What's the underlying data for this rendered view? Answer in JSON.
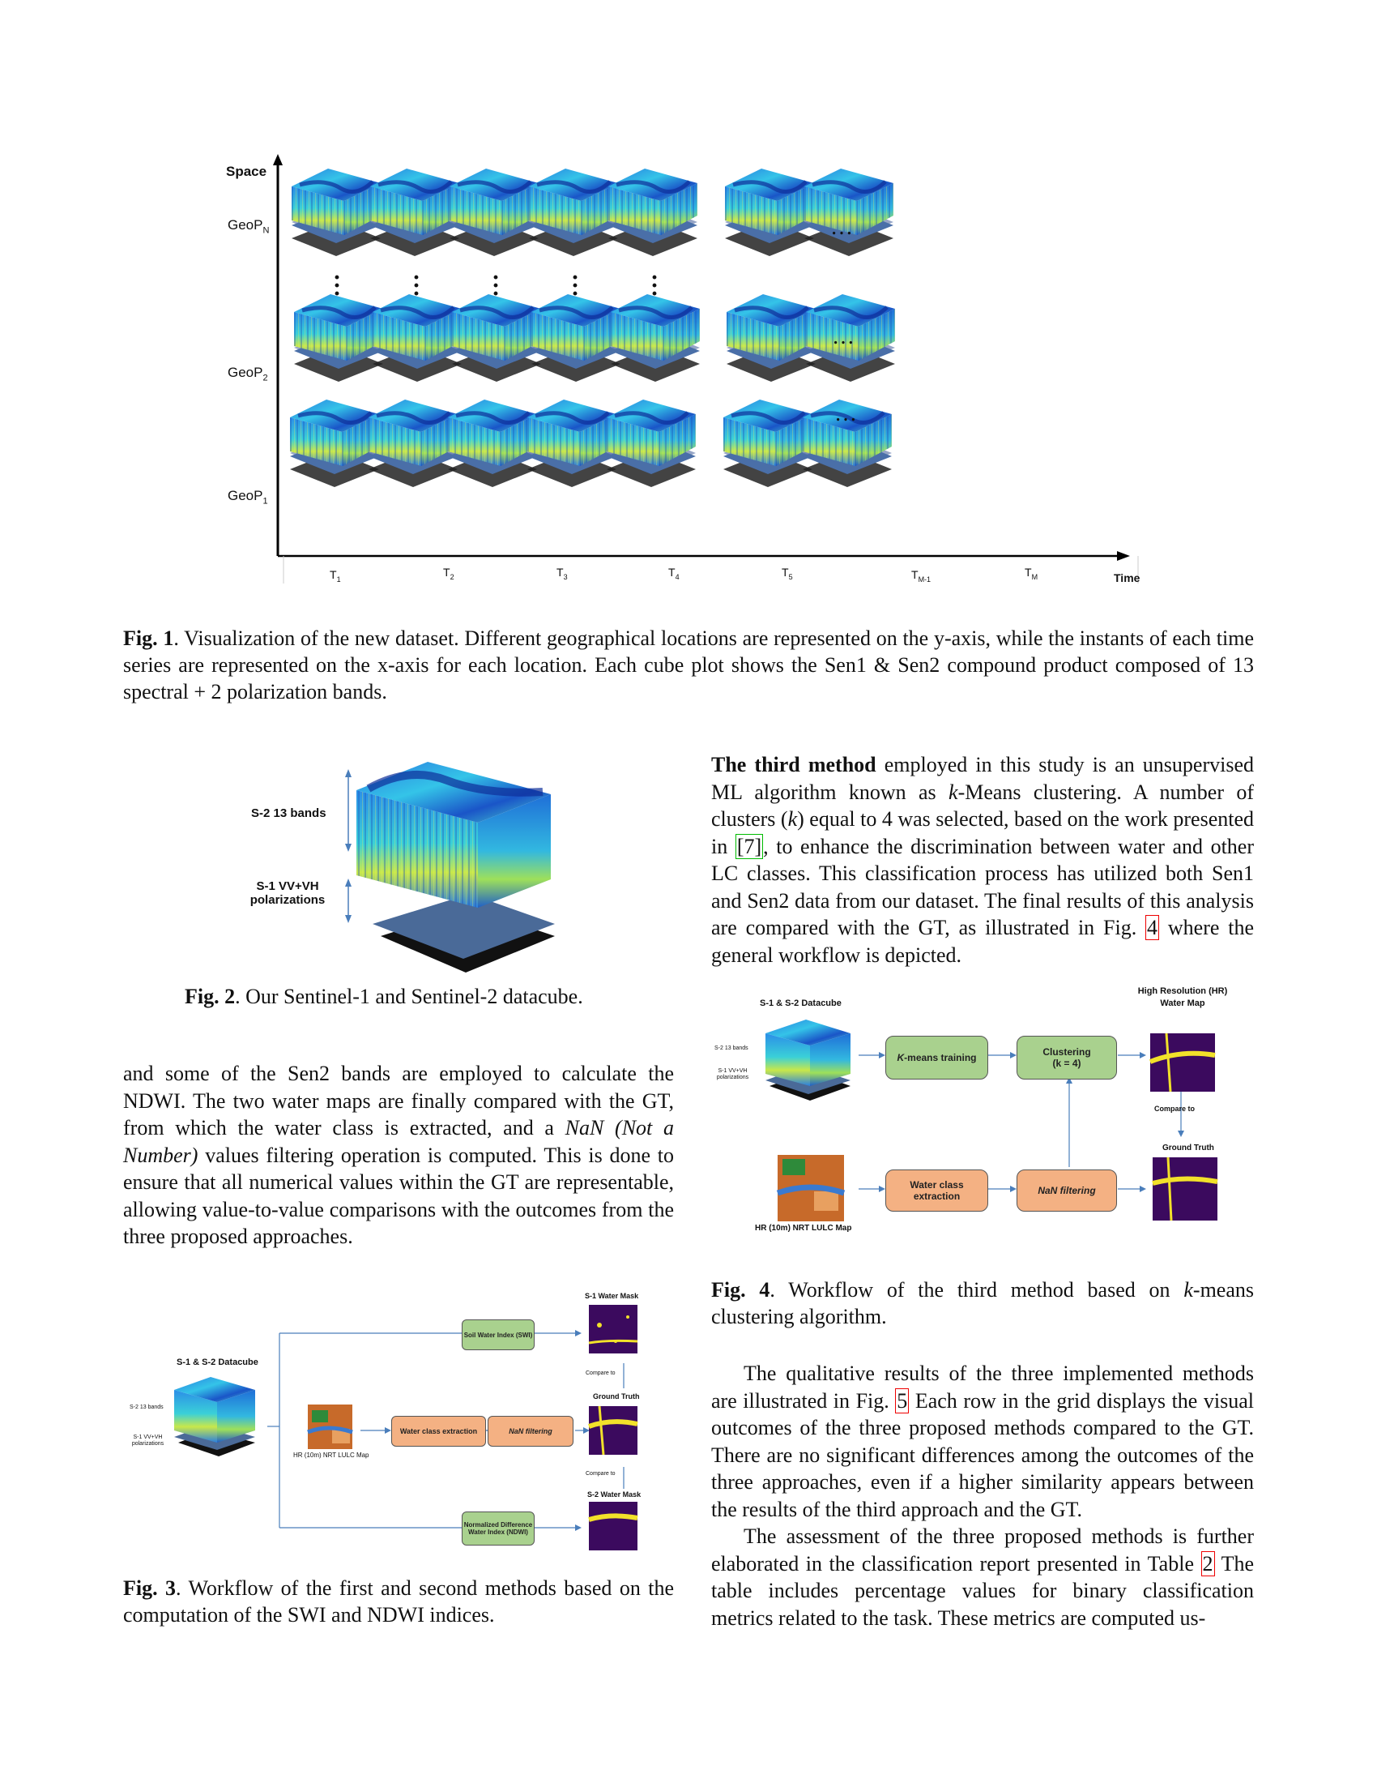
{
  "fig1": {
    "y_axis_label": "Space",
    "x_axis_label": "Time",
    "rows": [
      {
        "label": "GeoP",
        "sub": "N"
      },
      {
        "label": "GeoP",
        "sub": "2"
      },
      {
        "label": "GeoP",
        "sub": "1"
      }
    ],
    "time_ticks": [
      {
        "label": "T",
        "sub": "1"
      },
      {
        "label": "T",
        "sub": "2"
      },
      {
        "label": "T",
        "sub": "3"
      },
      {
        "label": "T",
        "sub": "4"
      },
      {
        "label": "T",
        "sub": "5"
      },
      {
        "label": "T",
        "sub": "M-1"
      },
      {
        "label": "T",
        "sub": "M"
      }
    ],
    "ellipsis": "…",
    "caption_label": "Fig. 1",
    "caption_text": ". Visualization of the new dataset. Different geographical locations are represented on the y-axis, while the instants of each time series are represented on the x-axis for each location. Each cube plot shows the Sen1 & Sen2 compound product composed of 13 spectral + 2 polarization bands."
  },
  "fig2": {
    "label_s2": "S-2  13 bands",
    "label_s1_line1": "S-1 VV+VH",
    "label_s1_line2": "polarizations",
    "caption_label": "Fig. 2",
    "caption_text": ". Our Sentinel-1 and Sentinel-2 datacube."
  },
  "left_paragraph": {
    "p1": "and some of the Sen2 bands are employed to calculate the NDWI. The two water maps are finally compared with the GT, from which the water class is extracted, and a ",
    "p1_italic": "NaN (Not a Number)",
    "p2": " values filtering operation is computed.  This is done to ensure that all numerical values within the GT are representable, allowing value-to-value comparisons with the outcomes from the three proposed approaches."
  },
  "fig3": {
    "datacube_title": "S-1 & S-2 Datacube",
    "s2_label": "S-2  13 bands",
    "s1_label_line1": "S-1 VV+VH",
    "s1_label_line2": "polarizations",
    "lulc_label": "HR (10m) NRT LULC Map",
    "swi_box": "Soil Water Index (SWI)",
    "water_box": "Water class extraction",
    "nan_box": "NaN filtering",
    "ndwi_box": "Normalized Difference Water Index (NDWI)",
    "s1_mask": "S-1 Water Mask",
    "ground_truth": "Ground Truth",
    "s2_mask": "S-2 Water Mask",
    "compare1": "Compare to",
    "compare2": "Compare to",
    "caption_label": "Fig. 3",
    "caption_text": ". Workflow of the first and second methods based on the computation of the SWI and NDWI indices."
  },
  "right_paragraph": {
    "bold": "The third method",
    "t1": " employed in this study is an unsupervised ML algorithm known as ",
    "k1": "k",
    "t2": "-Means clustering.  A number of clusters (",
    "k2": "k",
    "t3": ") equal to 4 was selected, based on the work presented in ",
    "ref7": "[7]",
    "t4": ", to enhance the discrimination between water and other LC classes. This classification process has utilized both Sen1 and Sen2 data from our dataset. The final results of this analysis are compared with the GT, as illustrated in Fig. ",
    "ref4": "4",
    "t5": " where the general workflow is depicted."
  },
  "fig4": {
    "datacube_title": "S-1 & S-2 Datacube",
    "s2_label": "S-2  13 bands",
    "s1_label_line1": "S-1 VV+VH",
    "s1_label_line2": "polarizations",
    "hr_title_line1": "High Resolution (HR)",
    "hr_title_line2": "Water Map",
    "kmeans_box_k": "K",
    "kmeans_box_rest": "-means training",
    "clustering_line1": "Clustering",
    "clustering_line2": "(k = 4)",
    "water_box": "Water class extraction",
    "nan_box": "NaN filtering",
    "compare": "Compare to",
    "ground_truth": "Ground Truth",
    "lulc_label": "HR (10m) NRT LULC Map",
    "caption_label": "Fig. 4",
    "caption_t1": ". Workflow of the third method based on ",
    "caption_k": "k",
    "caption_t2": "-means clustering algorithm."
  },
  "right_paragraph2": {
    "a1": "The qualitative results of the three implemented methods are illustrated in Fig. ",
    "ref5": "5",
    "a2": " Each row in the grid displays the visual outcomes of the three proposed methods compared to the GT. There are no significant differences among the outcomes of the three approaches, even if a higher similarity appears between the results of the third approach and the GT.",
    "b1": "The assessment of the three proposed methods is further elaborated in the classification report presented in Table ",
    "ref2": "2",
    "b2": " The table includes percentage values for binary classification metrics related to the task.  These metrics are computed us-"
  },
  "colors": {
    "cube_dark": "#1a3fb0",
    "cube_mid": "#2a9ee8",
    "cube_light": "#4fe0c8",
    "cube_yellow": "#d8ee40",
    "green_box": "#a9d18e",
    "orange_box": "#f4b183",
    "water_map_bg": "#3b0a5e",
    "water_map_river": "#f2e12a",
    "arrow": "#4a7ebb",
    "ref_red": "#e00000",
    "ref_green": "#00b000"
  }
}
